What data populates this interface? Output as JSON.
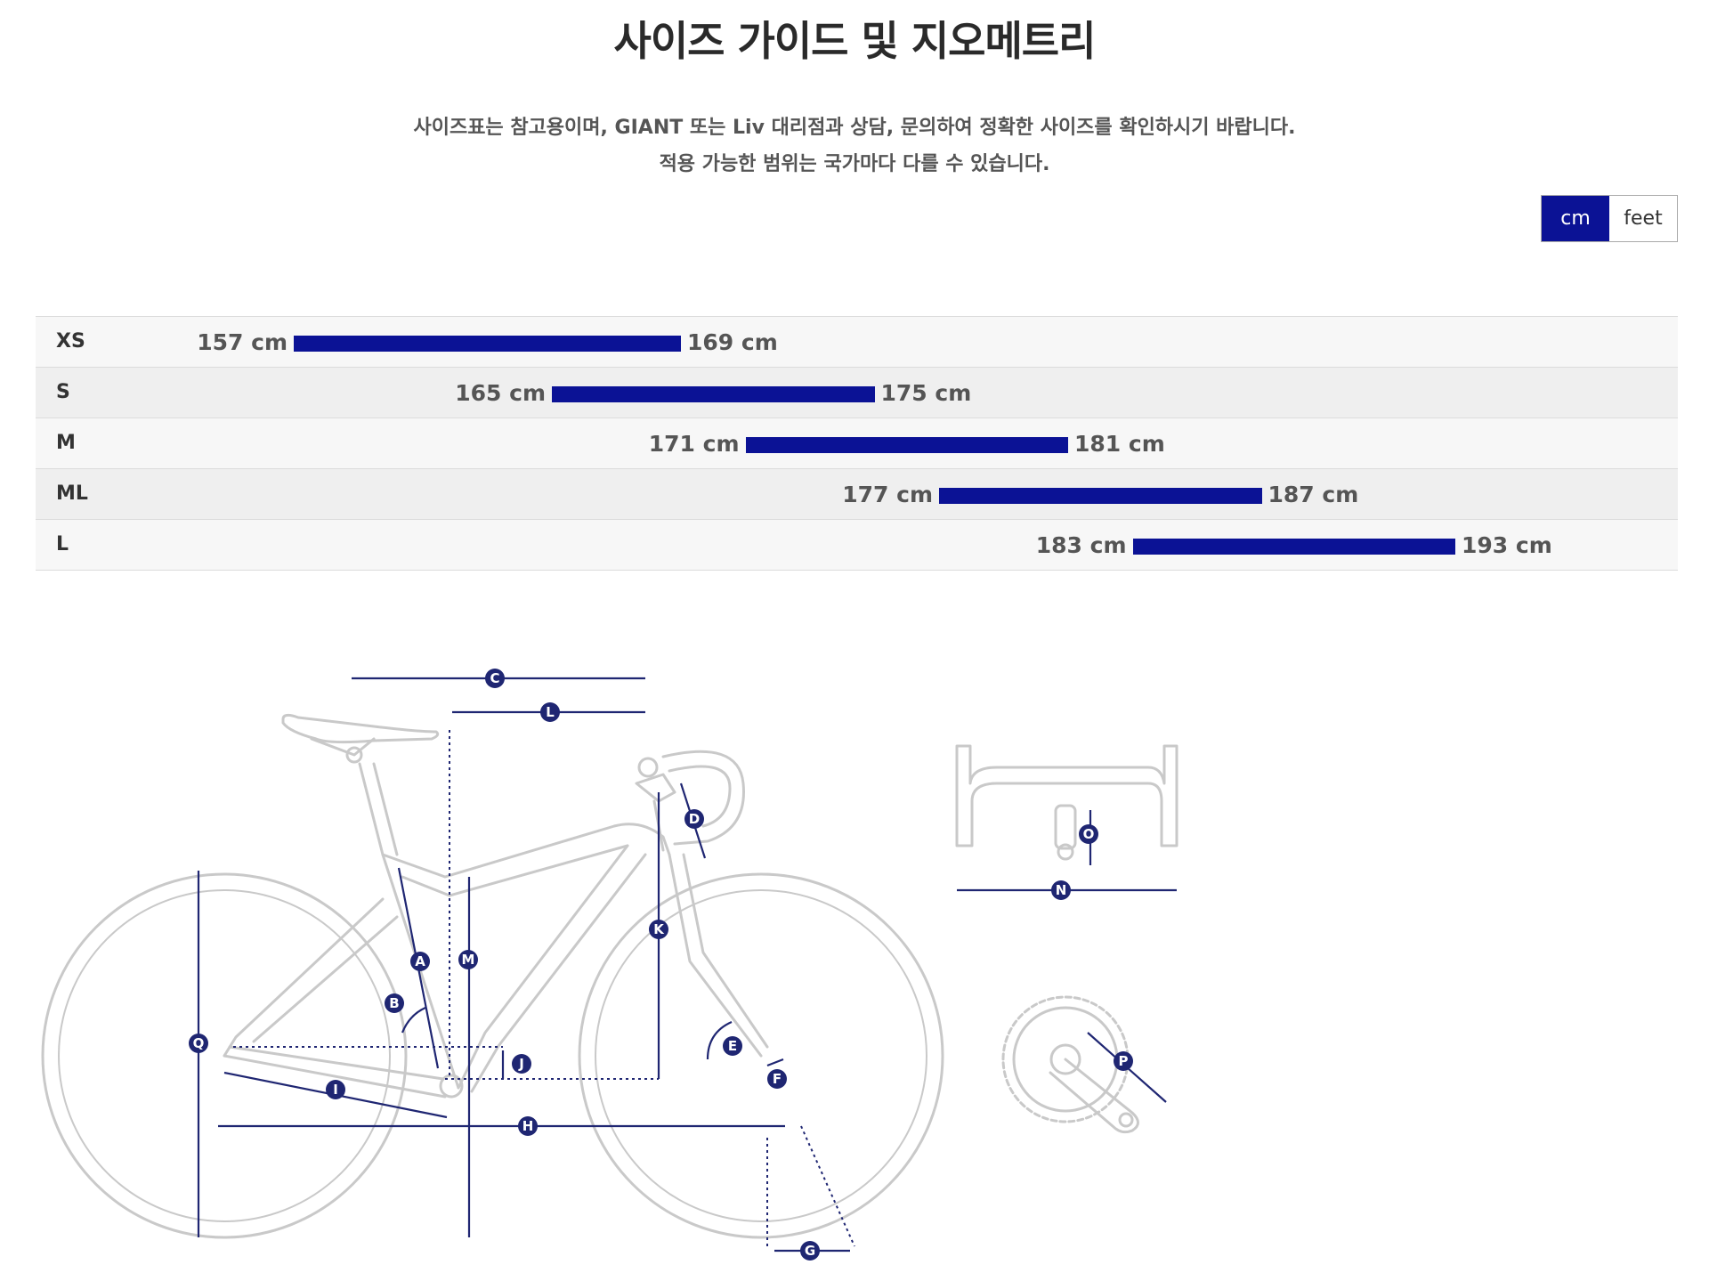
{
  "page_title": "사이즈 가이드 및 지오메트리",
  "subtitle": {
    "line1": "사이즈표는 참고용이며, GIANT 또는 Liv 대리점과 상담, 문의하여 정확한 사이즈를 확인하시기 바랍니다.",
    "line2": "적용 가능한 범위는 국가마다 다를 수 있습니다."
  },
  "unit_toggle": {
    "options": [
      "cm",
      "feet"
    ],
    "selected": "cm",
    "active_color": "#0b1295"
  },
  "size_chart": {
    "bar_color": "#0b1295",
    "rows": [
      {
        "size": "XS",
        "min_label": "157 cm",
        "max_label": "169 cm",
        "min": 157,
        "max": 169
      },
      {
        "size": "S",
        "min_label": "165 cm",
        "max_label": "175 cm",
        "min": 165,
        "max": 175
      },
      {
        "size": "M",
        "min_label": "171 cm",
        "max_label": "181 cm",
        "min": 171,
        "max": 181
      },
      {
        "size": "ML",
        "min_label": "177 cm",
        "max_label": "187 cm",
        "min": 177,
        "max": 187
      },
      {
        "size": "L",
        "min_label": "183 cm",
        "max_label": "193 cm",
        "min": 183,
        "max": 193
      }
    ]
  },
  "geometry_labels": [
    "A",
    "B",
    "C",
    "D",
    "E",
    "F",
    "G",
    "H",
    "I",
    "J",
    "K",
    "L",
    "M",
    "N",
    "O",
    "P",
    "Q"
  ]
}
